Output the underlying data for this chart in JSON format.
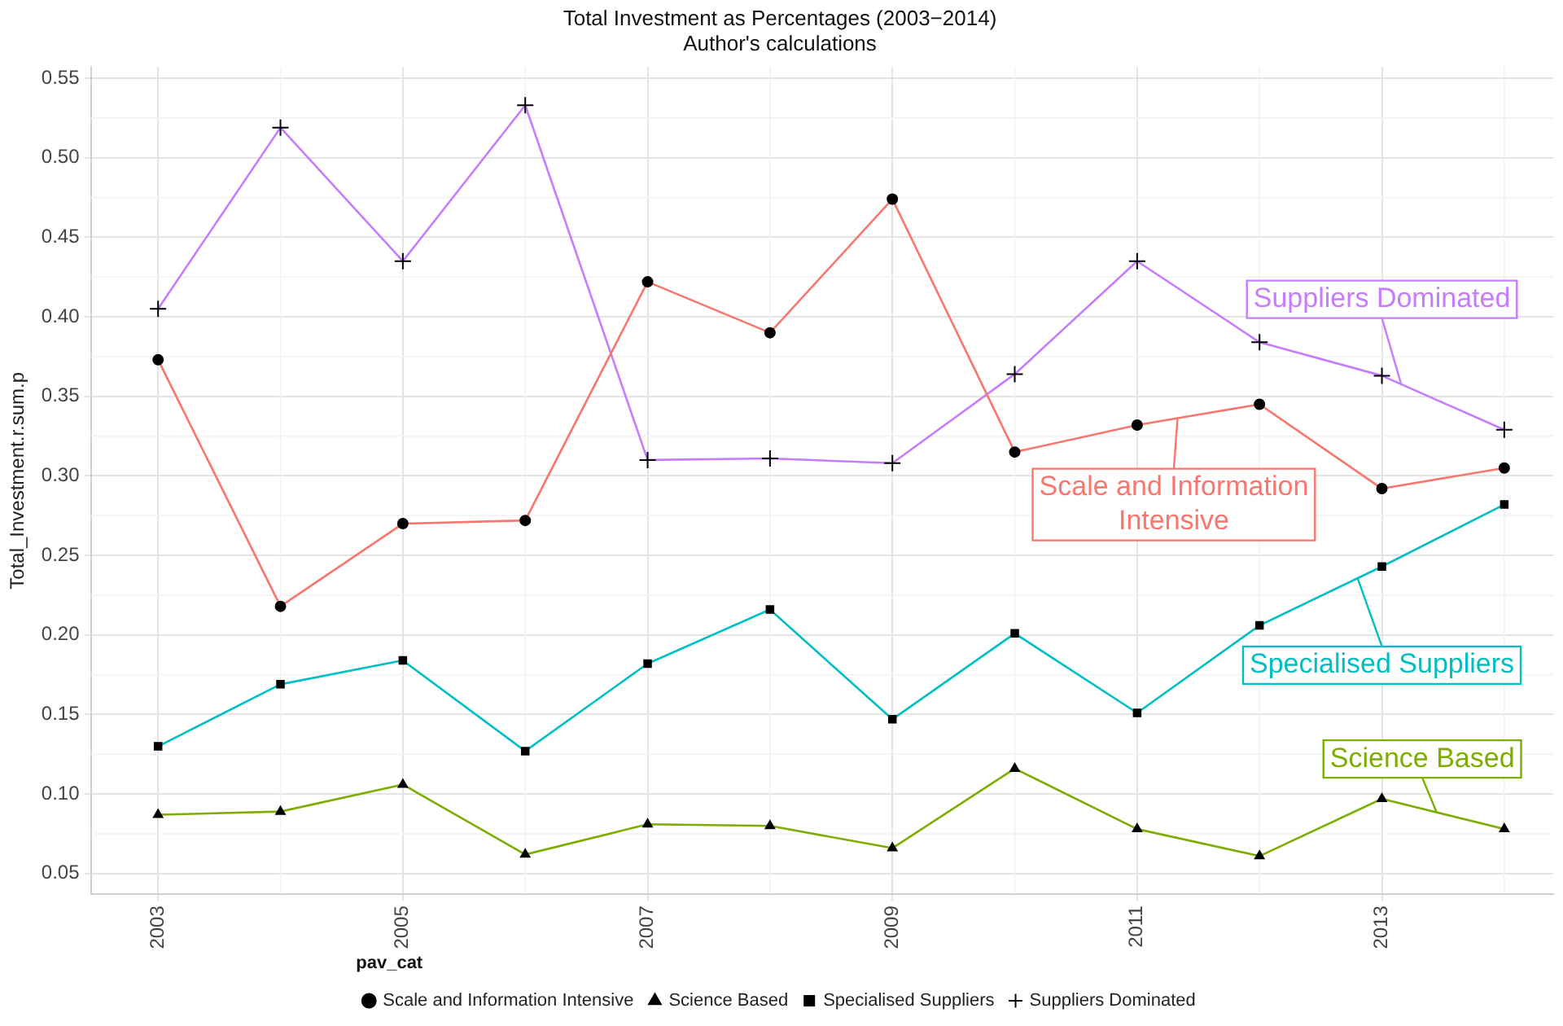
{
  "chart_data": {
    "type": "line",
    "title": "Total Investment as Percentages (2003−2014)",
    "subtitle": "Author's calculations",
    "ylabel": "Total_Investment.r.sum.p",
    "legend_title": "pav_cat",
    "x": [
      2003,
      2004,
      2005,
      2006,
      2007,
      2008,
      2009,
      2010,
      2011,
      2012,
      2013,
      2014
    ],
    "xlim": [
      2002.45,
      2014.4
    ],
    "xticks": [
      2003,
      2005,
      2007,
      2009,
      2011,
      2013
    ],
    "ylim": [
      0.037,
      0.557
    ],
    "yticks": [
      {
        "value": 0.05,
        "label": "0.05"
      },
      {
        "value": 0.1,
        "label": "0.10"
      },
      {
        "value": 0.15,
        "label": "0.15"
      },
      {
        "value": 0.2,
        "label": "0.20"
      },
      {
        "value": 0.25,
        "label": "0.25"
      },
      {
        "value": 0.3,
        "label": "0.30"
      },
      {
        "value": 0.35,
        "label": "0.35"
      },
      {
        "value": 0.4,
        "label": "0.40"
      },
      {
        "value": 0.45,
        "label": "0.45"
      },
      {
        "value": 0.5,
        "label": "0.50"
      },
      {
        "value": 0.55,
        "label": "0.55"
      }
    ],
    "grid": true,
    "legend": "bottom",
    "line_style": "solid",
    "series": [
      {
        "name": "Scale and Information Intensive",
        "color": "#f8766d",
        "marker": "circle",
        "values": [
          0.373,
          0.218,
          0.27,
          0.272,
          0.422,
          0.39,
          0.474,
          0.315,
          0.332,
          0.345,
          0.292,
          0.305
        ]
      },
      {
        "name": "Science Based",
        "color": "#7cae00",
        "marker": "triangle",
        "values": [
          0.087,
          0.089,
          0.106,
          0.062,
          0.081,
          0.08,
          0.066,
          0.116,
          0.078,
          0.061,
          0.097,
          0.078
        ]
      },
      {
        "name": "Specialised Suppliers",
        "color": "#00bfc4",
        "marker": "square",
        "values": [
          0.13,
          0.169,
          0.184,
          0.127,
          0.182,
          0.216,
          0.147,
          0.201,
          0.151,
          0.206,
          0.243,
          0.282
        ]
      },
      {
        "name": "Suppliers Dominated",
        "color": "#c77cff",
        "marker": "cross",
        "values": [
          0.405,
          0.519,
          0.435,
          0.533,
          0.31,
          0.311,
          0.308,
          0.364,
          0.435,
          0.384,
          0.363,
          0.329
        ]
      }
    ]
  }
}
